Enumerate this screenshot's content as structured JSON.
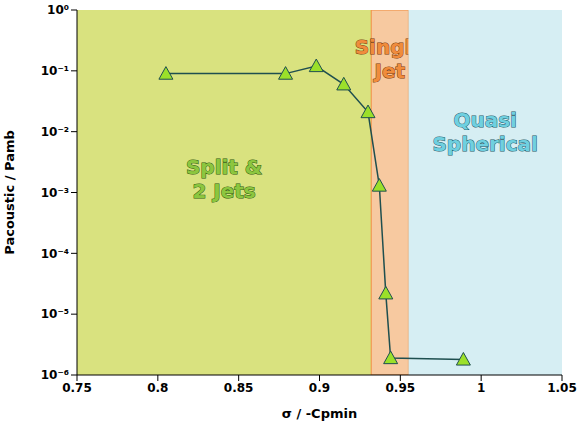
{
  "chart_data": {
    "type": "line",
    "x_label": "σ / -Cpmin",
    "y_label": "Pacoustic / Pamb",
    "log": "y",
    "grid": false,
    "xlim": [
      0.75,
      1.05
    ],
    "xticks": [
      0.75,
      0.8,
      0.85,
      0.9,
      0.95,
      1,
      1.05
    ],
    "ylim": [
      1e-06,
      1
    ],
    "yticks": [
      {
        "value": 1e-06,
        "label": "10⁻⁶"
      },
      {
        "value": 1e-05,
        "label": "10⁻⁵"
      },
      {
        "value": 0.0001,
        "label": "10⁻⁴"
      },
      {
        "value": 0.001,
        "label": "10⁻³"
      },
      {
        "value": 0.01,
        "label": "10⁻²"
      },
      {
        "value": 0.1,
        "label": "10⁻¹"
      },
      {
        "value": 1,
        "label": "10⁰"
      }
    ],
    "x": [
      0.805,
      0.879,
      0.898,
      0.915,
      0.93,
      0.937,
      0.941,
      0.944,
      0.989
    ],
    "values": [
      0.09,
      0.09,
      0.12,
      0.06,
      0.021,
      0.0013,
      2.2e-05,
      1.9e-06,
      1.8e-06
    ],
    "color": "#1f4f4f",
    "marker": "triangle",
    "regions": [
      {
        "label": "Split & 2 Jets",
        "x": [
          0.75,
          0.932
        ],
        "color": "#d9e27f"
      },
      {
        "label": "Single Jet",
        "x": [
          0.932,
          0.955
        ],
        "color": "#f7c9a0"
      },
      {
        "label": "Quasi Spherical",
        "x": [
          0.955,
          1.05
        ],
        "color": "#d6eef3"
      }
    ]
  }
}
